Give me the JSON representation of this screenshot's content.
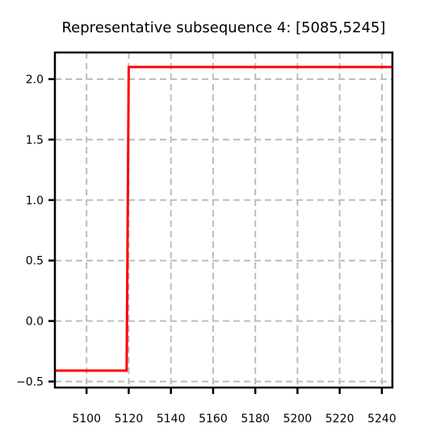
{
  "chart_data": {
    "type": "line",
    "title": "Representative subsequence 4: [5085,5245]",
    "xlabel": "",
    "ylabel": "",
    "xlim": [
      5085,
      5245
    ],
    "ylim": [
      -0.55,
      2.22
    ],
    "x_ticks": [
      5100,
      5120,
      5140,
      5160,
      5180,
      5200,
      5220,
      5240
    ],
    "y_ticks": [
      -0.5,
      0.0,
      0.5,
      1.0,
      1.5,
      2.0
    ],
    "x_tick_labels": [
      "5100",
      "5120",
      "5140",
      "5160",
      "5180",
      "5200",
      "5220",
      "5240"
    ],
    "y_tick_labels": [
      "−0.5",
      "0.0",
      "0.5",
      "1.0",
      "1.5",
      "2.0"
    ],
    "grid": true,
    "series": [
      {
        "color": "#ff0000",
        "points": [
          [
            5085,
            -0.41
          ],
          [
            5119,
            -0.41
          ],
          [
            5120,
            2.1
          ],
          [
            5245,
            2.1
          ]
        ]
      }
    ]
  }
}
